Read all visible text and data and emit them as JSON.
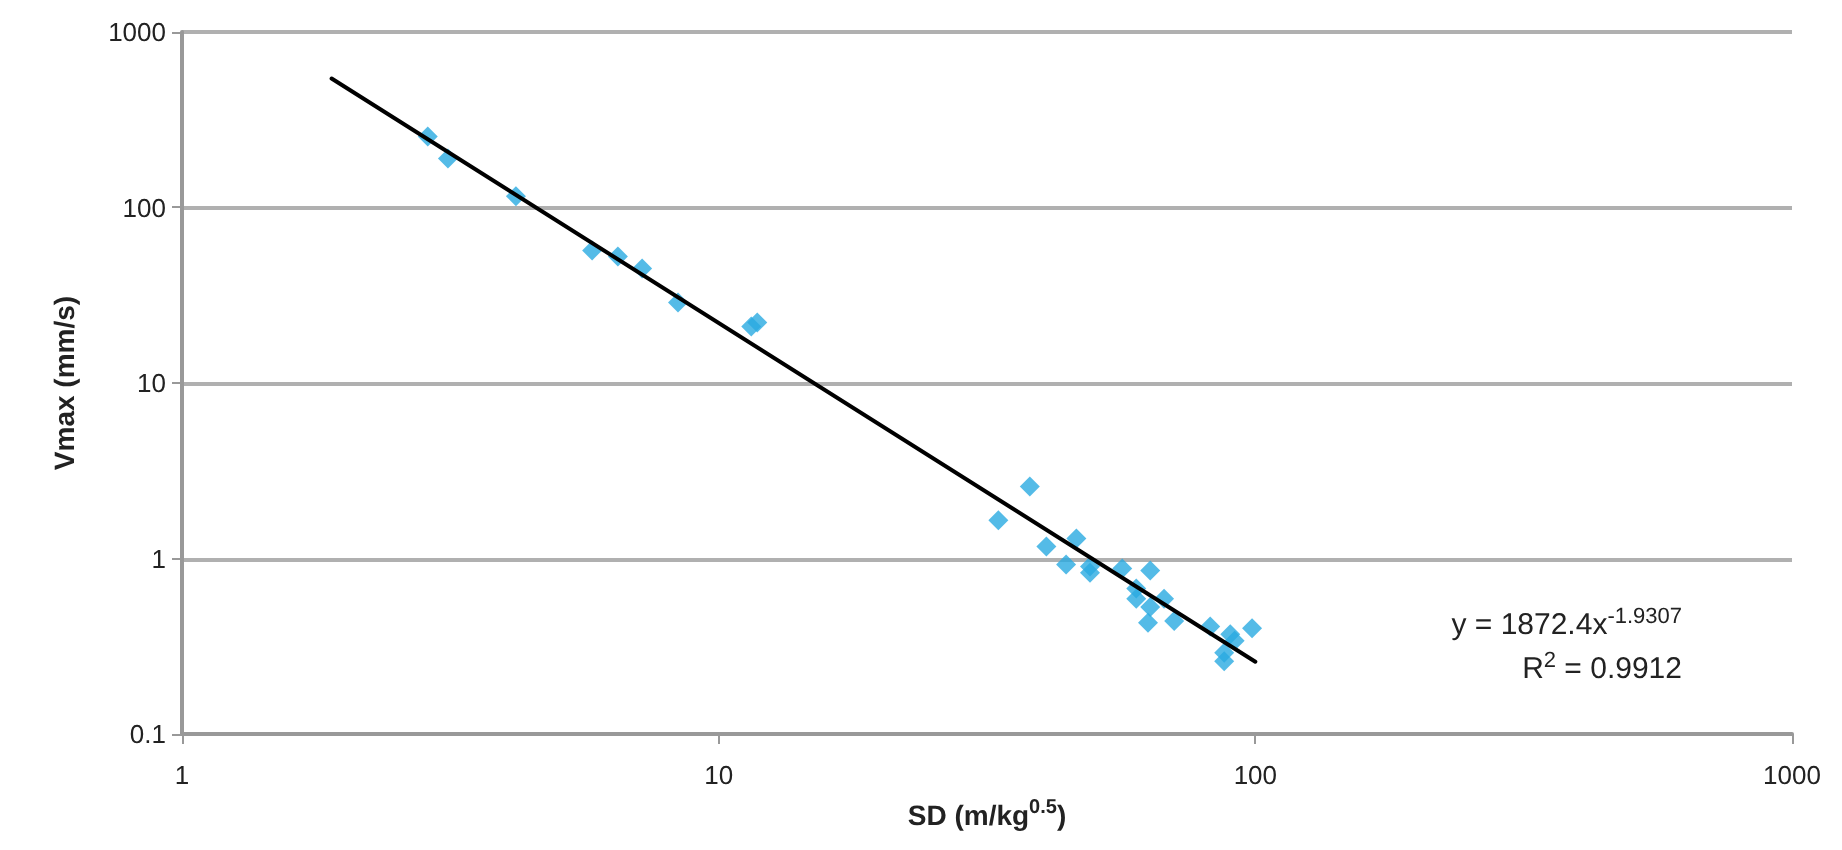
{
  "chart_data": {
    "type": "scatter",
    "xlabel": "SD (m/kg$^{0.5}$)",
    "ylabel": "Vmax (mm/s)",
    "log": "xy",
    "grid": "y",
    "xlim": [
      1,
      1000
    ],
    "xticks": [
      1,
      10,
      100,
      1000
    ],
    "ylim": [
      0.1,
      1000
    ],
    "yticks": [
      0.1,
      1,
      10,
      100,
      1000
    ],
    "annotations": [
      "y = 1872.4x$^{-1.9307}$",
      "R$^{2}$ = 0.9912"
    ],
    "series": [
      {
        "marker": "diamond",
        "color": "#29aae1",
        "x": [
          2.87,
          3.13,
          4.19,
          5.81,
          6.49,
          7.2,
          8.4,
          11.5,
          11.8,
          33.2,
          38.0,
          40.8,
          46.4,
          44.4,
          49.2,
          49.2,
          56.5,
          63.7,
          60.0,
          60.0,
          63.7,
          67.6,
          63.1,
          70.6,
          82.4,
          89.8,
          87.5,
          87.5,
          98.6,
          91.5
        ],
        "values": [
          254,
          190,
          116,
          56.9,
          52.6,
          44.9,
          28.8,
          21,
          22.1,
          1.65,
          2.57,
          1.17,
          1.3,
          0.925,
          0.9,
          0.83,
          0.877,
          0.855,
          0.675,
          0.59,
          0.53,
          0.59,
          0.43,
          0.44,
          0.41,
          0.37,
          0.29,
          0.26,
          0.4,
          0.34
        ]
      },
      {
        "type": "line",
        "marker": "none",
        "line_style": "solid",
        "color": "#000000",
        "x": [
          1.9,
          100
        ],
        "values": [
          543,
          0.258
        ]
      }
    ]
  }
}
